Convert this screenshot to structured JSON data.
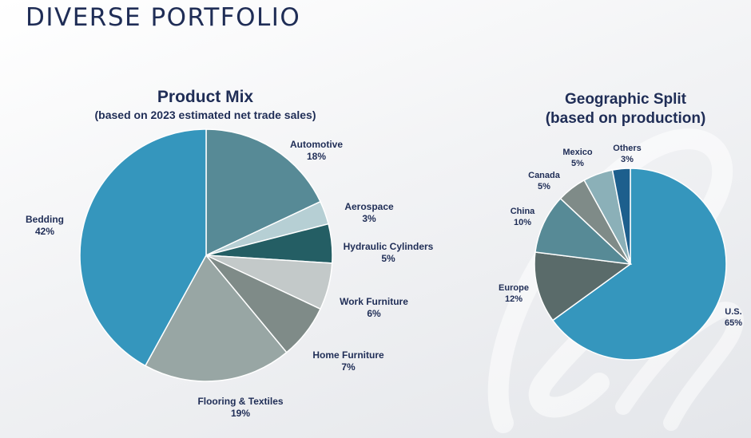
{
  "page": {
    "title": "DIVERSE PORTFOLIO"
  },
  "colors": {
    "title": "#1f2d56",
    "label": "#1f2d56",
    "bedding": "#3596bd",
    "automotive": "#578a96",
    "aerospace": "#b6cfd4",
    "hydraulic": "#245e64",
    "work_furniture": "#c3c9c9",
    "home_furniture": "#7f8b88",
    "flooring": "#98a6a4",
    "us": "#3596bd",
    "europe": "#5a6b6a",
    "china": "#578a96",
    "canada": "#7f8b88",
    "mexico": "#8bb0b8",
    "others": "#1d5f8d"
  },
  "chart_data": [
    {
      "type": "pie",
      "title": "Product Mix",
      "subtitle": "(based on 2023 estimated net trade sales)",
      "slices": [
        {
          "label": "Automotive",
          "value": 18,
          "value_label": "18%",
          "color": "#578a96"
        },
        {
          "label": "Aerospace",
          "value": 3,
          "value_label": "3%",
          "color": "#b6cfd4"
        },
        {
          "label": "Hydraulic Cylinders",
          "value": 5,
          "value_label": "5%",
          "color": "#245e64"
        },
        {
          "label": "Work Furniture",
          "value": 6,
          "value_label": "6%",
          "color": "#c3c9c9"
        },
        {
          "label": "Home Furniture",
          "value": 7,
          "value_label": "7%",
          "color": "#7f8b88"
        },
        {
          "label": "Flooring & Textiles",
          "value": 19,
          "value_label": "19%",
          "color": "#98a6a4"
        },
        {
          "label": "Bedding",
          "value": 42,
          "value_label": "42%",
          "color": "#3596bd"
        }
      ]
    },
    {
      "type": "pie",
      "title": "Geographic Split",
      "subtitle": "(based on production)",
      "slices": [
        {
          "label": "U.S.",
          "value": 65,
          "value_label": "65%",
          "color": "#3596bd"
        },
        {
          "label": "Europe",
          "value": 12,
          "value_label": "12%",
          "color": "#5a6b6a"
        },
        {
          "label": "China",
          "value": 10,
          "value_label": "10%",
          "color": "#578a96"
        },
        {
          "label": "Canada",
          "value": 5,
          "value_label": "5%",
          "color": "#7f8b88"
        },
        {
          "label": "Mexico",
          "value": 5,
          "value_label": "5%",
          "color": "#8bb0b8"
        },
        {
          "label": "Others",
          "value": 3,
          "value_label": "3%",
          "color": "#1d5f8d"
        }
      ]
    }
  ]
}
